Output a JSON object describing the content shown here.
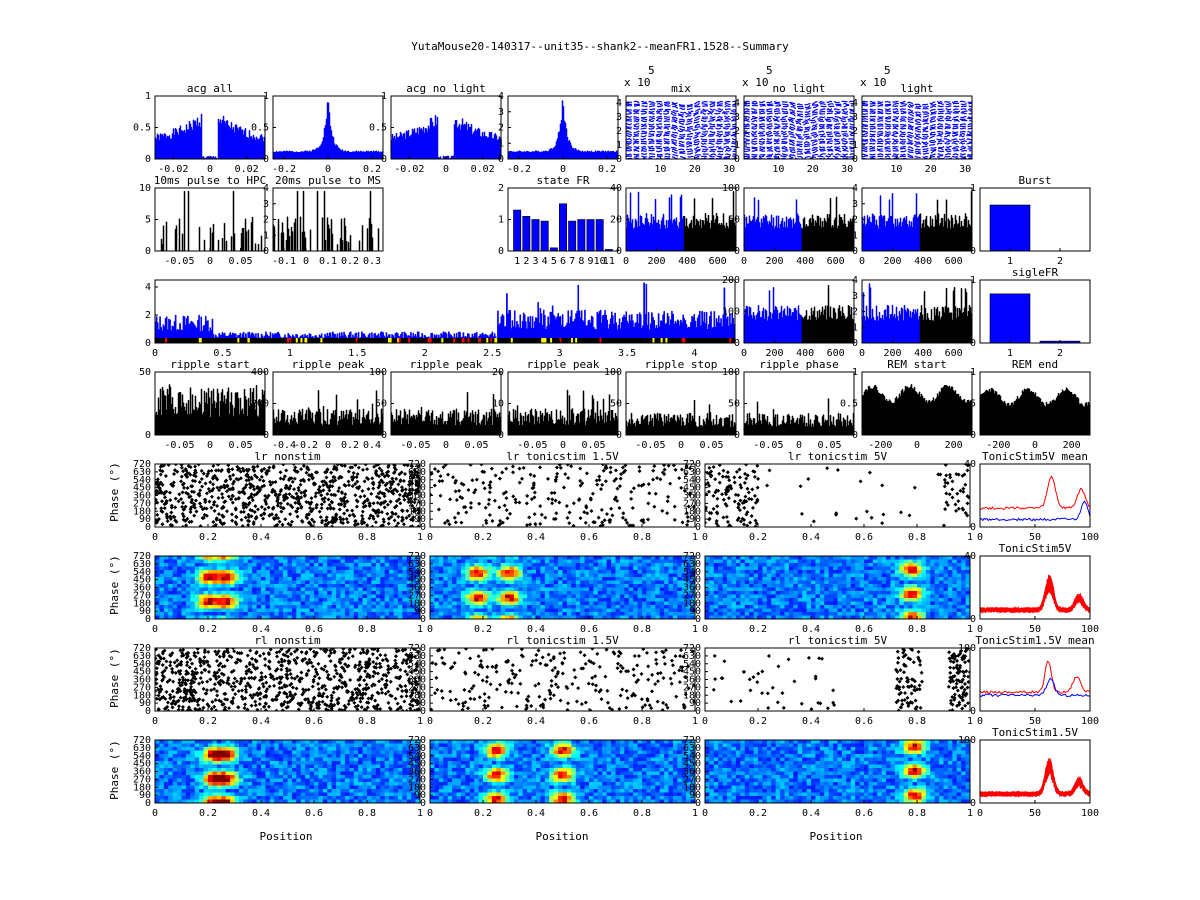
{
  "figure": {
    "title": "YutaMouse20-140317--unit35--shank2--meanFR1.1528--Summary",
    "position_label": "Position",
    "phase_label": "Phase (°)"
  },
  "colors": {
    "blue": "#0000ff",
    "black": "#000000",
    "red": "#ff0000",
    "yellow": "#ffff00"
  },
  "chart_data": [
    {
      "id": "acg_all",
      "type": "bar",
      "title": "acg all",
      "xlim": [
        -0.03,
        0.03
      ],
      "ylim": [
        0,
        1
      ],
      "xticks": [
        "-0.02",
        "0",
        "0.02"
      ],
      "yticks": [
        "0",
        "0.5",
        "1"
      ],
      "color": "blue",
      "shape": "acg_hole",
      "seed": 1
    },
    {
      "id": "acg_wide",
      "type": "bar",
      "title": "",
      "xlim": [
        -0.25,
        0.25
      ],
      "ylim": [
        0,
        1
      ],
      "xticks": [
        "-0.2",
        "0",
        "0.2"
      ],
      "yticks": [
        "0",
        "0.5",
        "1"
      ],
      "color": "blue",
      "shape": "acg_peak",
      "seed": 2
    },
    {
      "id": "acg_nolight",
      "type": "bar",
      "title": "acg no light",
      "xlim": [
        -0.03,
        0.03
      ],
      "ylim": [
        0,
        1
      ],
      "xticks": [
        "-0.02",
        "0",
        "0.02"
      ],
      "yticks": [
        "0",
        "0.5",
        "1"
      ],
      "color": "blue",
      "shape": "acg_hole",
      "seed": 3
    },
    {
      "id": "acg_nolight_wide",
      "type": "bar",
      "title": "",
      "xlim": [
        -0.25,
        0.25
      ],
      "ylim": [
        0,
        4
      ],
      "xticks": [
        "-0.2",
        "0",
        "0.2"
      ],
      "yticks": [
        "0",
        "1",
        "2",
        "3",
        "4"
      ],
      "color": "blue",
      "shape": "acg_peak",
      "seed": 4
    },
    {
      "id": "wave_mix",
      "type": "waveform",
      "title": "mix",
      "exponent_label": "x 10",
      "exponent": "5",
      "xlim": [
        0,
        32
      ],
      "ylim": [
        0,
        4.5
      ],
      "xticks": [
        "10",
        "20",
        "30"
      ],
      "yticks": [
        "0",
        "1",
        "2",
        "3",
        "4"
      ],
      "color": "blue",
      "seed": 5
    },
    {
      "id": "wave_nolight",
      "type": "waveform",
      "title": "no light",
      "exponent_label": "x 10",
      "exponent": "5",
      "xlim": [
        0,
        32
      ],
      "ylim": [
        0,
        4.5
      ],
      "xticks": [
        "10",
        "20",
        "30"
      ],
      "yticks": [
        "0",
        "1",
        "2",
        "3",
        "4"
      ],
      "color": "blue",
      "seed": 6
    },
    {
      "id": "wave_light",
      "type": "waveform",
      "title": "light",
      "exponent_label": "x 10",
      "exponent": "5",
      "xlim": [
        0,
        32
      ],
      "ylim": [
        0,
        4.5
      ],
      "xticks": [
        "10",
        "20",
        "30"
      ],
      "yticks": [
        "0",
        "1",
        "2",
        "3",
        "4"
      ],
      "color": "blue",
      "seed": 7
    },
    {
      "id": "pulse_hpc",
      "type": "bar",
      "title": "10ms pulse to HPC",
      "xlim": [
        -0.09,
        0.09
      ],
      "ylim": [
        0,
        10
      ],
      "xticks": [
        "-0.05",
        "0",
        "0.05"
      ],
      "yticks": [
        "0",
        "5",
        "10"
      ],
      "color": "black",
      "shape": "sparse",
      "seed": 8
    },
    {
      "id": "pulse_ms",
      "type": "bar",
      "title": "20ms pulse to MS",
      "xlim": [
        -0.15,
        0.35
      ],
      "ylim": [
        0,
        4
      ],
      "xticks": [
        "-0.1",
        "0",
        "0.1",
        "0.2",
        "0.3"
      ],
      "yticks": [
        "0",
        "1",
        "2",
        "3",
        "4"
      ],
      "color": "black",
      "shape": "sparse",
      "seed": 9
    },
    {
      "id": "state_fr",
      "type": "bar",
      "title": "state FR",
      "categories": [
        "1",
        "2",
        "3",
        "4",
        "5",
        "6",
        "7",
        "8",
        "9",
        "10",
        "11"
      ],
      "values": [
        1.3,
        1.1,
        1.0,
        0.95,
        0.1,
        1.5,
        0.95,
        1.0,
        1.0,
        1.0,
        0.05
      ],
      "xlim": [
        0,
        12
      ],
      "ylim": [
        0,
        2
      ],
      "yticks": [
        "0",
        "1",
        "2"
      ],
      "color": "blue",
      "shape": "categorical"
    },
    {
      "id": "fr_mix",
      "type": "bar",
      "title": "",
      "xlim": [
        0,
        720
      ],
      "ylim": [
        0,
        40
      ],
      "xticks": [
        "0",
        "200",
        "400",
        "600"
      ],
      "yticks": [
        "0",
        "20",
        "40"
      ],
      "split": 380,
      "shape": "fr_split",
      "seed": 10
    },
    {
      "id": "fr_nolight",
      "type": "bar",
      "title": "",
      "xlim": [
        0,
        720
      ],
      "ylim": [
        0,
        100
      ],
      "xticks": [
        "0",
        "200",
        "400",
        "600"
      ],
      "yticks": [
        "0",
        "50",
        "100"
      ],
      "split": 380,
      "shape": "fr_split",
      "seed": 11
    },
    {
      "id": "fr_light",
      "type": "bar",
      "title": "",
      "xlim": [
        0,
        720
      ],
      "ylim": [
        0,
        4
      ],
      "xticks": [
        "0",
        "200",
        "400",
        "600"
      ],
      "yticks": [
        "0",
        "1",
        "2",
        "3",
        "4"
      ],
      "split": 380,
      "shape": "fr_split",
      "seed": 12
    },
    {
      "id": "burst",
      "type": "bar",
      "title": "Burst",
      "xlim": [
        0.4,
        2.6
      ],
      "ylim": [
        0,
        1
      ],
      "xticks": [
        "1",
        "2"
      ],
      "yticks": [
        "0",
        "1"
      ],
      "categories": [
        "1",
        "2"
      ],
      "values": [
        0.73,
        0.0
      ],
      "color": "blue",
      "shape": "two_bar"
    },
    {
      "id": "timeline",
      "type": "bar",
      "title": "",
      "xlim": [
        0,
        4.3
      ],
      "ylim": [
        0,
        4.5
      ],
      "xticks": [
        "0",
        "0.5",
        "1",
        "1.5",
        "2",
        "2.5",
        "3",
        "3.5",
        "4"
      ],
      "yticks": [
        "0",
        "2",
        "4"
      ],
      "color": "blue",
      "shape": "timeline",
      "seed": 13
    },
    {
      "id": "fr_row3a",
      "type": "bar",
      "title": "",
      "xlim": [
        0,
        720
      ],
      "ylim": [
        0,
        200
      ],
      "xticks": [
        "0",
        "200",
        "400",
        "600"
      ],
      "yticks": [
        "0",
        "100",
        "200"
      ],
      "split": 380,
      "shape": "fr_split",
      "seed": 14
    },
    {
      "id": "fr_row3b",
      "type": "bar",
      "title": "",
      "xlim": [
        0,
        720
      ],
      "ylim": [
        0,
        4
      ],
      "xticks": [
        "0",
        "200",
        "400",
        "600"
      ],
      "yticks": [
        "0",
        "1",
        "2",
        "3",
        "4"
      ],
      "split": 380,
      "shape": "fr_split",
      "seed": 15
    },
    {
      "id": "sigle_fr",
      "type": "bar",
      "title": "sigleFR",
      "xlim": [
        0.4,
        2.6
      ],
      "ylim": [
        0,
        1
      ],
      "xticks": [
        "1",
        "2"
      ],
      "yticks": [
        "0",
        "1"
      ],
      "categories": [
        "1",
        "2"
      ],
      "values": [
        0.78,
        0.03
      ],
      "color": "blue",
      "shape": "two_bar"
    },
    {
      "id": "ripple_start",
      "type": "bar",
      "title": "ripple start",
      "xlim": [
        -0.09,
        0.09
      ],
      "ylim": [
        0,
        50
      ],
      "xticks": [
        "-0.05",
        "0",
        "0.05"
      ],
      "yticks": [
        "0",
        "50"
      ],
      "color": "black",
      "shape": "noisy",
      "level": 0.55,
      "seed": 16
    },
    {
      "id": "ripple_peak1",
      "type": "bar",
      "title": "ripple peak",
      "xlim": [
        -0.5,
        0.5
      ],
      "ylim": [
        0,
        400
      ],
      "xticks": [
        "-0.4",
        "-0.2",
        "0",
        "0.2",
        "0.4"
      ],
      "yticks": [
        "0",
        "200",
        "400"
      ],
      "color": "black",
      "shape": "noisy",
      "level": 0.3,
      "seed": 17
    },
    {
      "id": "ripple_peak2",
      "type": "bar",
      "title": "ripple peak",
      "xlim": [
        -0.09,
        0.09
      ],
      "ylim": [
        0,
        100
      ],
      "xticks": [
        "-0.05",
        "0",
        "0.05"
      ],
      "yticks": [
        "0",
        "50",
        "100"
      ],
      "color": "black",
      "shape": "noisy",
      "level": 0.3,
      "seed": 18
    },
    {
      "id": "ripple_peak3",
      "type": "bar",
      "title": "ripple peak",
      "xlim": [
        -0.09,
        0.09
      ],
      "ylim": [
        0,
        20
      ],
      "xticks": [
        "-0.05",
        "0",
        "0.05"
      ],
      "yticks": [
        "0",
        "10",
        "20"
      ],
      "color": "black",
      "shape": "noisy",
      "level": 0.3,
      "seed": 19
    },
    {
      "id": "ripple_stop",
      "type": "bar",
      "title": "ripple stop",
      "xlim": [
        -0.09,
        0.09
      ],
      "ylim": [
        0,
        100
      ],
      "xticks": [
        "-0.05",
        "0",
        "0.05"
      ],
      "yticks": [
        "0",
        "50",
        "100"
      ],
      "color": "black",
      "shape": "noisy",
      "level": 0.25,
      "seed": 20
    },
    {
      "id": "ripple_phase",
      "type": "bar",
      "title": "ripple phase",
      "xlim": [
        -0.09,
        0.09
      ],
      "ylim": [
        0,
        100
      ],
      "xticks": [
        "-0.05",
        "0",
        "0.05"
      ],
      "yticks": [
        "0",
        "50",
        "100"
      ],
      "color": "black",
      "shape": "noisy",
      "level": 0.25,
      "seed": 21
    },
    {
      "id": "rem_start",
      "type": "bar",
      "title": "REM start",
      "xlim": [
        -300,
        300
      ],
      "ylim": [
        0,
        1
      ],
      "xticks": [
        "-200",
        "0",
        "200"
      ],
      "yticks": [
        "0",
        "0.5",
        "1"
      ],
      "color": "black",
      "shape": "smooth",
      "level": 0.65,
      "seed": 22
    },
    {
      "id": "rem_end",
      "type": "bar",
      "title": "REM end",
      "xlim": [
        -300,
        300
      ],
      "ylim": [
        0,
        1
      ],
      "xticks": [
        "-200",
        "0",
        "200"
      ],
      "yticks": [
        "0",
        "0.5",
        "1"
      ],
      "color": "black",
      "shape": "smooth",
      "level": 0.6,
      "seed": 23
    },
    {
      "id": "lr_nonstim",
      "type": "scatter",
      "title": "lr nonstim",
      "xlim": [
        0,
        1
      ],
      "ylim": [
        0,
        720
      ],
      "xticks": [
        "0",
        "0.2",
        "0.4",
        "0.6",
        "0.8",
        "1"
      ],
      "yticks": [
        "0",
        "90",
        "180",
        "270",
        "360",
        "450",
        "540",
        "630",
        "720"
      ],
      "density": "dense",
      "seed": 24
    },
    {
      "id": "lr_tonic15",
      "type": "scatter",
      "title": "lr tonicstim 1.5V",
      "xlim": [
        0,
        1
      ],
      "ylim": [
        0,
        720
      ],
      "xticks": [
        "0",
        "0.2",
        "0.4",
        "0.6",
        "0.8",
        "1"
      ],
      "yticks": [
        "0",
        "90",
        "180",
        "270",
        "360",
        "450",
        "540",
        "630",
        "720"
      ],
      "density": "medium",
      "seed": 25
    },
    {
      "id": "lr_tonic5",
      "type": "scatter",
      "title": "lr tonicstim 5V",
      "xlim": [
        0,
        1
      ],
      "ylim": [
        0,
        720
      ],
      "xticks": [
        "0",
        "0.2",
        "0.4",
        "0.6",
        "0.8",
        "1"
      ],
      "yticks": [
        "0",
        "90",
        "180",
        "270",
        "360",
        "450",
        "540",
        "630",
        "720"
      ],
      "density": "sparse",
      "seed": 26
    },
    {
      "id": "tonic5_mean",
      "type": "line",
      "title": "TonicStim5V mean",
      "xlim": [
        0,
        100
      ],
      "ylim": [
        0,
        40
      ],
      "xticks": [
        "0",
        "50",
        "100"
      ],
      "yticks": [
        "0",
        "40"
      ],
      "profile": "mean5",
      "seed": 27
    },
    {
      "id": "lr_nonstim_map",
      "type": "heatmap",
      "title": "",
      "xlim": [
        0,
        1
      ],
      "ylim": [
        0,
        720
      ],
      "xticks": [
        "0",
        "0.2",
        "0.4",
        "0.6",
        "0.8",
        "1"
      ],
      "yticks": [
        "0",
        "90",
        "180",
        "270",
        "360",
        "450",
        "540",
        "630",
        "720"
      ],
      "hot": [
        0.2,
        0.27
      ],
      "seed": 28
    },
    {
      "id": "lr_tonic15_map",
      "type": "heatmap",
      "title": "",
      "xlim": [
        0,
        1
      ],
      "ylim": [
        0,
        720
      ],
      "xticks": [
        "0",
        "0.2",
        "0.4",
        "0.6",
        "0.8",
        "1"
      ],
      "yticks": [
        "0",
        "90",
        "180",
        "270",
        "360",
        "450",
        "540",
        "630",
        "720"
      ],
      "hot": [
        0.18,
        0.3
      ],
      "seed": 29
    },
    {
      "id": "lr_tonic5_map",
      "type": "heatmap",
      "title": "",
      "xlim": [
        0,
        1
      ],
      "ylim": [
        0,
        720
      ],
      "xticks": [
        "0",
        "0.2",
        "0.4",
        "0.6",
        "0.8",
        "1"
      ],
      "yticks": [
        "0",
        "90",
        "180",
        "270",
        "360",
        "450",
        "540",
        "630",
        "720"
      ],
      "hot": [
        0.78
      ],
      "seed": 30
    },
    {
      "id": "tonic5_all",
      "type": "line",
      "title": "TonicStim5V",
      "xlim": [
        0,
        100
      ],
      "ylim": [
        0,
        40
      ],
      "xticks": [
        "0",
        "50",
        "100"
      ],
      "yticks": [
        "0",
        "40"
      ],
      "profile": "all5",
      "seed": 31
    },
    {
      "id": "rl_nonstim",
      "type": "scatter",
      "title": "rl nonstim",
      "xlim": [
        0,
        1
      ],
      "ylim": [
        0,
        720
      ],
      "xticks": [
        "0",
        "0.2",
        "0.4",
        "0.6",
        "0.8",
        "1"
      ],
      "yticks": [
        "0",
        "90",
        "180",
        "270",
        "360",
        "450",
        "540",
        "630",
        "720"
      ],
      "density": "dense",
      "seed": 32
    },
    {
      "id": "rl_tonic15",
      "type": "scatter",
      "title": "rl tonicstim 1.5V",
      "xlim": [
        0,
        1
      ],
      "ylim": [
        0,
        720
      ],
      "xticks": [
        "0",
        "0.2",
        "0.4",
        "0.6",
        "0.8",
        "1"
      ],
      "yticks": [
        "0",
        "90",
        "180",
        "270",
        "360",
        "450",
        "540",
        "630",
        "720"
      ],
      "density": "medium",
      "seed": 33
    },
    {
      "id": "rl_tonic5",
      "type": "scatter",
      "title": "rl tonicstim 5V",
      "xlim": [
        0,
        1
      ],
      "ylim": [
        0,
        720
      ],
      "xticks": [
        "0",
        "0.2",
        "0.4",
        "0.6",
        "0.8",
        "1"
      ],
      "yticks": [
        "0",
        "90",
        "180",
        "270",
        "360",
        "450",
        "540",
        "630",
        "720"
      ],
      "density": "field",
      "seed": 34
    },
    {
      "id": "tonic15_mean",
      "type": "line",
      "title": "TonicStim1.5V mean",
      "xlim": [
        0,
        100
      ],
      "ylim": [
        0,
        100
      ],
      "xticks": [
        "0",
        "50",
        "100"
      ],
      "yticks": [
        "0",
        "100"
      ],
      "profile": "mean15",
      "seed": 35
    },
    {
      "id": "rl_nonstim_map",
      "type": "heatmap",
      "title": "",
      "xlim": [
        0,
        1
      ],
      "ylim": [
        0,
        720
      ],
      "xticks": [
        "0",
        "0.2",
        "0.4",
        "0.6",
        "0.8",
        "1"
      ],
      "yticks": [
        "0",
        "90",
        "180",
        "270",
        "360",
        "450",
        "540",
        "630",
        "720"
      ],
      "hot": [
        0.22,
        0.27
      ],
      "seed": 36
    },
    {
      "id": "rl_tonic15_map",
      "type": "heatmap",
      "title": "",
      "xlim": [
        0,
        1
      ],
      "ylim": [
        0,
        720
      ],
      "xticks": [
        "0",
        "0.2",
        "0.4",
        "0.6",
        "0.8",
        "1"
      ],
      "yticks": [
        "0",
        "90",
        "180",
        "270",
        "360",
        "450",
        "540",
        "630",
        "720"
      ],
      "hot": [
        0.25,
        0.5
      ],
      "seed": 37
    },
    {
      "id": "rl_tonic5_map",
      "type": "heatmap",
      "title": "",
      "xlim": [
        0,
        1
      ],
      "ylim": [
        0,
        720
      ],
      "xticks": [
        "0",
        "0.2",
        "0.4",
        "0.6",
        "0.8",
        "1"
      ],
      "yticks": [
        "0",
        "90",
        "180",
        "270",
        "360",
        "450",
        "540",
        "630",
        "720"
      ],
      "hot": [
        0.79
      ],
      "seed": 38
    },
    {
      "id": "tonic15_all",
      "type": "line",
      "title": "TonicStim1.5V",
      "xlim": [
        0,
        100
      ],
      "ylim": [
        0,
        100
      ],
      "xticks": [
        "0",
        "50",
        "100"
      ],
      "yticks": [
        "0",
        "100"
      ],
      "profile": "all15",
      "seed": 39
    }
  ]
}
